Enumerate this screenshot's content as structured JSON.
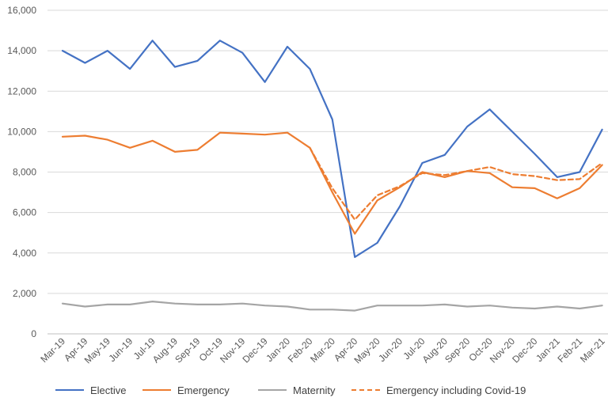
{
  "chart_data": {
    "type": "line",
    "title": "",
    "xlabel": "",
    "ylabel": "",
    "ylim": [
      0,
      16000
    ],
    "yticks": [
      "0",
      "2,000",
      "4,000",
      "6,000",
      "8,000",
      "10,000",
      "12,000",
      "14,000",
      "16,000"
    ],
    "categories": [
      "Mar-19",
      "Apr-19",
      "May-19",
      "Jun-19",
      "Jul-19",
      "Aug-19",
      "Sep-19",
      "Oct-19",
      "Nov-19",
      "Dec-19",
      "Jan-20",
      "Feb-20",
      "Mar-20",
      "Apr-20",
      "May-20",
      "Jun-20",
      "Jul-20",
      "Aug-20",
      "Sep-20",
      "Oct-20",
      "Nov-20",
      "Dec-20",
      "Jan-21",
      "Feb-21",
      "Mar-21"
    ],
    "grid": true,
    "legend_position": "bottom",
    "series": [
      {
        "name": "Elective",
        "color": "#4472C4",
        "dash": "solid",
        "values": [
          14000,
          13400,
          14000,
          13100,
          14500,
          13200,
          13500,
          14500,
          13900,
          12450,
          14200,
          13100,
          10600,
          3800,
          4500,
          6300,
          8450,
          8850,
          10250,
          11100,
          10000,
          8900,
          7750,
          8000,
          10100
        ]
      },
      {
        "name": "Emergency",
        "color": "#ED7D31",
        "dash": "solid",
        "values": [
          9750,
          9800,
          9600,
          9200,
          9550,
          9000,
          9100,
          9950,
          9900,
          9850,
          9950,
          9200,
          7000,
          4950,
          6600,
          7250,
          8000,
          7750,
          8050,
          7950,
          7250,
          7200,
          6700,
          7200,
          8350
        ]
      },
      {
        "name": "Maternity",
        "color": "#A5A5A5",
        "dash": "solid",
        "values": [
          1500,
          1350,
          1450,
          1450,
          1600,
          1500,
          1450,
          1450,
          1500,
          1400,
          1350,
          1200,
          1200,
          1150,
          1400,
          1400,
          1400,
          1450,
          1350,
          1400,
          1300,
          1250,
          1350,
          1250,
          1400
        ]
      },
      {
        "name": "Emergency including Covid-19",
        "color": "#ED7D31",
        "dash": "dashed",
        "values": [
          null,
          null,
          null,
          null,
          null,
          null,
          null,
          null,
          null,
          null,
          null,
          9200,
          7200,
          5650,
          6850,
          7300,
          7950,
          7850,
          8050,
          8250,
          7900,
          7800,
          7600,
          7650,
          8450
        ]
      }
    ]
  }
}
